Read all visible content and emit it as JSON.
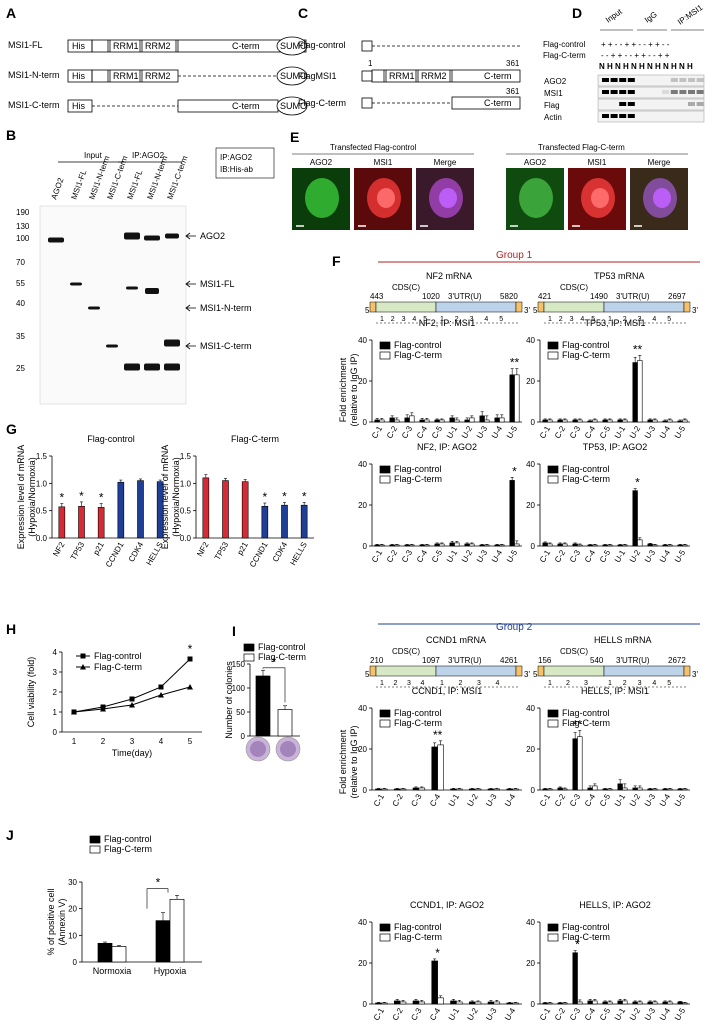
{
  "panels": {
    "A": "A",
    "B": "B",
    "C": "C",
    "D": "D",
    "E": "E",
    "F": "F",
    "G": "G",
    "H": "H",
    "I": "I",
    "J": "J"
  },
  "panelA": {
    "rows": [
      {
        "label": "MSI1-FL",
        "his": "His",
        "rrm1": "RRM1",
        "rrm2": "RRM2",
        "cterm": "C-term",
        "sumo": "SUMO"
      },
      {
        "label": "MSI1-N-term",
        "his": "His",
        "rrm1": "RRM1",
        "rrm2": "RRM2",
        "sumo": "SUMO"
      },
      {
        "label": "MSI1-C-term",
        "his": "His",
        "cterm": "C-term",
        "sumo": "SUMO"
      }
    ]
  },
  "panelB": {
    "input_label": "Input",
    "ip_label": "IP:AGO2",
    "legend_box": [
      "IP:AGO2",
      "IB:His-ab"
    ],
    "lanes": [
      "AGO2",
      "MSI1-FL",
      "MSI1-N-term",
      "MSI1-C-term",
      "MSI1-FL",
      "MSI1-N-term",
      "MSI1-C-term"
    ],
    "mw_markers": [
      "190",
      "130",
      "100",
      "70",
      "55",
      "40",
      "35",
      "25"
    ],
    "band_labels": [
      "AGO2",
      "MSI1-FL",
      "MSI1-N-term",
      "MSI1-C-term"
    ]
  },
  "panelC": {
    "rows": [
      {
        "label": "Flag-control"
      },
      {
        "label": "FlagMSI1",
        "start": "1",
        "rrm1": "RRM1",
        "rrm2": "RRM2",
        "cterm": "C-term",
        "end": "361"
      },
      {
        "label": "Flag-C-term",
        "cterm": "C-term",
        "end": "361"
      }
    ]
  },
  "panelD": {
    "groups": [
      "Input",
      "IgG",
      "IP:MSI1"
    ],
    "rows": [
      {
        "label": "Flag-control",
        "signs": "+ + - - + + - - + + - -"
      },
      {
        "label": "Flag-C-term",
        "signs": "- - + + - - + + - - + +"
      }
    ],
    "nh": "N H N H N H N H N H N H",
    "blots": [
      "AGO2",
      "MSI1",
      "Flag",
      "Actin"
    ]
  },
  "panelE": {
    "left_title": "Transfected Flag-control",
    "right_title": "Transfected Flag-C-term",
    "channels": [
      "AGO2",
      "MSI1",
      "Merge"
    ]
  },
  "panelF": {
    "group1": "Group 1",
    "group2": "Group 2",
    "ylabel": [
      "Fold enrichment",
      "(relative to IgG IP)"
    ],
    "legend": [
      "Flag-control",
      "Flag-C-term"
    ],
    "maps": [
      {
        "title": "NF2 mRNA",
        "pos": [
          "443",
          "1020",
          "5820"
        ],
        "cds": "CDS(C)",
        "utr": "3'UTR(U)",
        "cds_nums": [
          "1",
          "2",
          "3",
          "4",
          "5"
        ],
        "utr_nums": [
          "1",
          "2",
          "3",
          "4",
          "5"
        ]
      },
      {
        "title": "TP53 mRNA",
        "pos": [
          "421",
          "1490",
          "2697"
        ],
        "cds": "CDS(C)",
        "utr": "3'UTR(U)",
        "cds_nums": [
          "1",
          "2",
          "3",
          "4",
          "5"
        ],
        "utr_nums": [
          "1",
          "2",
          "3",
          "4",
          "5"
        ]
      },
      {
        "title": "CCND1 mRNA",
        "pos": [
          "210",
          "1097",
          "4261"
        ],
        "cds": "CDS(C)",
        "utr": "3'UTR(U)",
        "cds_nums": [
          "1",
          "2",
          "3",
          "4"
        ],
        "utr_nums": [
          "1",
          "2",
          "3",
          "4"
        ]
      },
      {
        "title": "HELLS mRNA",
        "pos": [
          "156",
          "540",
          "2672"
        ],
        "cds": "CDS(C)",
        "utr": "3'UTR(U)",
        "cds_nums": [
          "1",
          "2",
          "3"
        ],
        "utr_nums": [
          "1",
          "2",
          "3",
          "4",
          "5"
        ]
      }
    ]
  },
  "panelG": {
    "ylabel": [
      "Expression level of mRNA",
      "(Hypoxia/Normoxia)"
    ]
  },
  "panelH": {
    "legend": [
      "Flag-control",
      "Flag-C-term"
    ]
  },
  "panelI": {
    "legend": [
      "Flag-control",
      "Flag-C-term"
    ]
  },
  "panelJ": {
    "legend": [
      "Flag-control",
      "Flag-C-term"
    ]
  },
  "chart_data": [
    {
      "id": "F1",
      "type": "bar",
      "title": "NF2, IP: MSI1",
      "categories": [
        "C-1",
        "C-2",
        "C-3",
        "C-4",
        "C-5",
        "U-1",
        "U-2",
        "U-3",
        "U-4",
        "U-5"
      ],
      "ylim": [
        0,
        40
      ],
      "yticks": [
        0,
        20,
        40
      ],
      "series": [
        {
          "name": "Flag-control",
          "values": [
            1,
            2,
            2,
            1,
            1,
            2,
            1,
            3,
            2,
            23
          ]
        },
        {
          "name": "Flag-C-term",
          "values": [
            1,
            1,
            3,
            1,
            1,
            1,
            2,
            1,
            2,
            23
          ]
        }
      ],
      "errors": [
        0.8,
        1,
        1.5,
        0.8,
        0.5,
        1,
        1,
        2,
        1.5,
        3
      ],
      "stars": [
        9
      ]
    },
    {
      "id": "F2",
      "type": "bar",
      "title": "TP53, IP: MSI1",
      "categories": [
        "C-1",
        "C-2",
        "C-3",
        "C-4",
        "C-5",
        "U-1",
        "U-2",
        "U-3",
        "U-4",
        "U-5"
      ],
      "ylim": [
        0,
        40
      ],
      "yticks": [
        0,
        20,
        40
      ],
      "series": [
        {
          "name": "Flag-control",
          "values": [
            1,
            1,
            1,
            0.5,
            1,
            1,
            29,
            1,
            0.5,
            0.5
          ]
        },
        {
          "name": "Flag-C-term",
          "values": [
            1,
            1,
            1,
            1,
            1,
            1,
            30,
            1,
            1,
            1
          ]
        }
      ],
      "errors": [
        0.5,
        0.5,
        0.5,
        0.5,
        0.5,
        0.5,
        2.5,
        0.5,
        0.5,
        0.5
      ],
      "stars": [
        6
      ]
    },
    {
      "id": "F3",
      "type": "bar",
      "title": "NF2, IP: AGO2",
      "categories": [
        "C-1",
        "C-2",
        "C-3",
        "C-4",
        "C-5",
        "U-1",
        "U-2",
        "U-3",
        "U-4",
        "U-5"
      ],
      "ylim": [
        0,
        40
      ],
      "yticks": [
        0,
        20,
        40
      ],
      "series": [
        {
          "name": "Flag-control",
          "values": [
            0.5,
            0.5,
            0.5,
            0.5,
            1,
            1.5,
            1,
            0.5,
            0.5,
            32
          ]
        },
        {
          "name": "Flag-C-term",
          "values": [
            0.5,
            0.5,
            0.5,
            0.5,
            1,
            1.5,
            1,
            0.5,
            0.5,
            1
          ]
        }
      ],
      "errors": [
        0.3,
        0.3,
        0.3,
        0.3,
        0.5,
        0.8,
        0.5,
        0.3,
        0.3,
        1.5
      ],
      "stars": [
        9
      ]
    },
    {
      "id": "F4",
      "type": "bar",
      "title": "TP53, IP: AGO2",
      "categories": [
        "C-1",
        "C-2",
        "C-3",
        "C-4",
        "C-5",
        "U-1",
        "U-2",
        "U-3",
        "U-4",
        "U-5"
      ],
      "ylim": [
        0,
        40
      ],
      "yticks": [
        0,
        20,
        40
      ],
      "series": [
        {
          "name": "Flag-control",
          "values": [
            1.5,
            1,
            1,
            0.5,
            0.5,
            0.5,
            27,
            1,
            0.5,
            0.5
          ]
        },
        {
          "name": "Flag-C-term",
          "values": [
            1,
            1,
            0.5,
            0.5,
            0.5,
            0.5,
            3,
            0.5,
            0.5,
            0.5
          ]
        }
      ],
      "errors": [
        0.5,
        0.5,
        0.5,
        0.3,
        0.3,
        0.3,
        1,
        0.3,
        0.3,
        0.3
      ],
      "stars": [
        6
      ]
    },
    {
      "id": "F5",
      "type": "bar",
      "title": "CCND1, IP: MSI1",
      "categories": [
        "C-1",
        "C-2",
        "C-3",
        "C-4",
        "U-1",
        "U-2",
        "U-3",
        "U-4"
      ],
      "ylim": [
        0,
        40
      ],
      "yticks": [
        0,
        20,
        40
      ],
      "series": [
        {
          "name": "Flag-control",
          "values": [
            0.5,
            0.5,
            1,
            21,
            0.5,
            0.5,
            0.5,
            0.5
          ]
        },
        {
          "name": "Flag-C-term",
          "values": [
            0.5,
            0.5,
            1,
            22,
            0.5,
            0.5,
            0.5,
            0.5
          ]
        }
      ],
      "errors": [
        0.3,
        0.3,
        0.5,
        2,
        0.3,
        0.3,
        0.3,
        0.3
      ],
      "stars": [
        3
      ]
    },
    {
      "id": "F6",
      "type": "bar",
      "title": "HELLS, IP: MSI1",
      "categories": [
        "C-1",
        "C-2",
        "C-3",
        "C-4",
        "C-5",
        "U-1",
        "U-2",
        "U-3",
        "U-4",
        "U-5"
      ],
      "ylim": [
        0,
        40
      ],
      "yticks": [
        0,
        20,
        40
      ],
      "series": [
        {
          "name": "Flag-control",
          "values": [
            0.5,
            1,
            25,
            1,
            0.5,
            3,
            1,
            0.5,
            0.5,
            0.5
          ]
        },
        {
          "name": "Flag-C-term",
          "values": [
            0.5,
            0.5,
            26,
            2,
            0.5,
            1,
            1,
            0.5,
            0.5,
            0.5
          ]
        }
      ],
      "errors": [
        0.3,
        0.5,
        3,
        1,
        0.3,
        2,
        1,
        0.3,
        0.3,
        0.3
      ],
      "stars": [
        2
      ]
    },
    {
      "id": "F7",
      "type": "bar",
      "title": "CCND1, IP: AGO2",
      "categories": [
        "C-1",
        "C-2",
        "C-3",
        "C-4",
        "U-1",
        "U-2",
        "U-3",
        "U-4"
      ],
      "ylim": [
        0,
        40
      ],
      "yticks": [
        0,
        20,
        40
      ],
      "series": [
        {
          "name": "Flag-control",
          "values": [
            0.5,
            1.5,
            1.5,
            21,
            1.5,
            1,
            1,
            0.5
          ]
        },
        {
          "name": "Flag-C-term",
          "values": [
            0.5,
            1,
            1,
            3,
            1,
            1,
            1,
            0.5
          ]
        }
      ],
      "errors": [
        0.3,
        0.8,
        0.8,
        1,
        0.8,
        0.5,
        0.8,
        0.3
      ],
      "stars": [
        3
      ]
    },
    {
      "id": "F8",
      "type": "bar",
      "title": "HELLS, IP: AGO2",
      "categories": [
        "C-1",
        "C-2",
        "C-3",
        "C-4",
        "C-5",
        "U-1",
        "U-2",
        "U-3",
        "U-4",
        "U-5"
      ],
      "ylim": [
        0,
        40
      ],
      "yticks": [
        0,
        20,
        40
      ],
      "series": [
        {
          "name": "Flag-control",
          "values": [
            0.5,
            0.5,
            25,
            1.5,
            1,
            1.5,
            1,
            1,
            1,
            1
          ]
        },
        {
          "name": "Flag-C-term",
          "values": [
            0.5,
            0.5,
            1,
            1.5,
            1,
            1.5,
            1,
            1,
            1,
            0.5
          ]
        }
      ],
      "errors": [
        0.3,
        0.3,
        1,
        0.8,
        0.5,
        0.8,
        0.5,
        0.5,
        0.5,
        0.3
      ],
      "stars": [
        2
      ]
    },
    {
      "id": "G1",
      "type": "bar",
      "title": "Flag-control",
      "categories": [
        "NF2",
        "TP53",
        "p21",
        "CCND1",
        "CDK4",
        "HELLS"
      ],
      "ylim": [
        0,
        1.5
      ],
      "yticks": [
        0.0,
        0.5,
        1.0,
        1.5
      ],
      "values": [
        0.57,
        0.58,
        0.56,
        1.02,
        1.05,
        1.03
      ],
      "errors": [
        0.06,
        0.08,
        0.07,
        0.04,
        0.03,
        0.03
      ],
      "colors": [
        "#d62b35",
        "#d62b35",
        "#d62b35",
        "#1f3f97",
        "#1f3f97",
        "#1f3f97"
      ],
      "stars": [
        0,
        1,
        2
      ]
    },
    {
      "id": "G2",
      "type": "bar",
      "title": "Flag-C-term",
      "categories": [
        "NF2",
        "TP53",
        "p21",
        "CCND1",
        "CDK4",
        "HELLS"
      ],
      "ylim": [
        0,
        1.5
      ],
      "yticks": [
        0.0,
        0.5,
        1.0,
        1.5
      ],
      "values": [
        1.1,
        1.05,
        1.03,
        0.58,
        0.6,
        0.6
      ],
      "errors": [
        0.06,
        0.04,
        0.04,
        0.06,
        0.05,
        0.05
      ],
      "colors": [
        "#d62b35",
        "#d62b35",
        "#d62b35",
        "#1f3f97",
        "#1f3f97",
        "#1f3f97"
      ],
      "stars": [
        3,
        4,
        5
      ]
    },
    {
      "id": "H",
      "type": "line",
      "ylabel": "Cell viability (fold)",
      "xlabel": "Time(day)",
      "x": [
        1,
        2,
        3,
        4,
        5
      ],
      "ylim": [
        0,
        4
      ],
      "yticks": [
        0,
        1,
        2,
        3,
        4
      ],
      "series": [
        {
          "name": "Flag-control",
          "values": [
            1.0,
            1.25,
            1.65,
            2.25,
            3.65
          ]
        },
        {
          "name": "Flag-C-term",
          "values": [
            1.0,
            1.15,
            1.35,
            1.85,
            2.25
          ]
        }
      ],
      "errors": [
        0.05,
        0.08,
        0.1,
        0.12,
        0.2
      ],
      "stars": [
        4
      ]
    },
    {
      "id": "I",
      "type": "bar",
      "ylabel": "Number of colonies",
      "categories": [
        "Flag-control",
        "Flag-C-term"
      ],
      "ylim": [
        0,
        150
      ],
      "yticks": [
        0,
        50,
        100,
        150
      ],
      "values": [
        125,
        55
      ],
      "errors": [
        12,
        8
      ],
      "stars": [
        "*"
      ]
    },
    {
      "id": "J",
      "type": "bar",
      "ylabel": [
        "% of positive cell",
        "(Annexin V)"
      ],
      "categories": [
        "Normoxia",
        "Hypoxia"
      ],
      "ylim": [
        0,
        30
      ],
      "yticks": [
        0,
        10,
        20,
        30
      ],
      "series": [
        {
          "name": "Flag-control",
          "values": [
            7,
            15.5
          ]
        },
        {
          "name": "Flag-C-term",
          "values": [
            5.8,
            23.5
          ]
        }
      ],
      "errors": [
        [
          0.5,
          3
        ],
        [
          0.4,
          1.5
        ]
      ],
      "stars": [
        "*"
      ]
    }
  ]
}
